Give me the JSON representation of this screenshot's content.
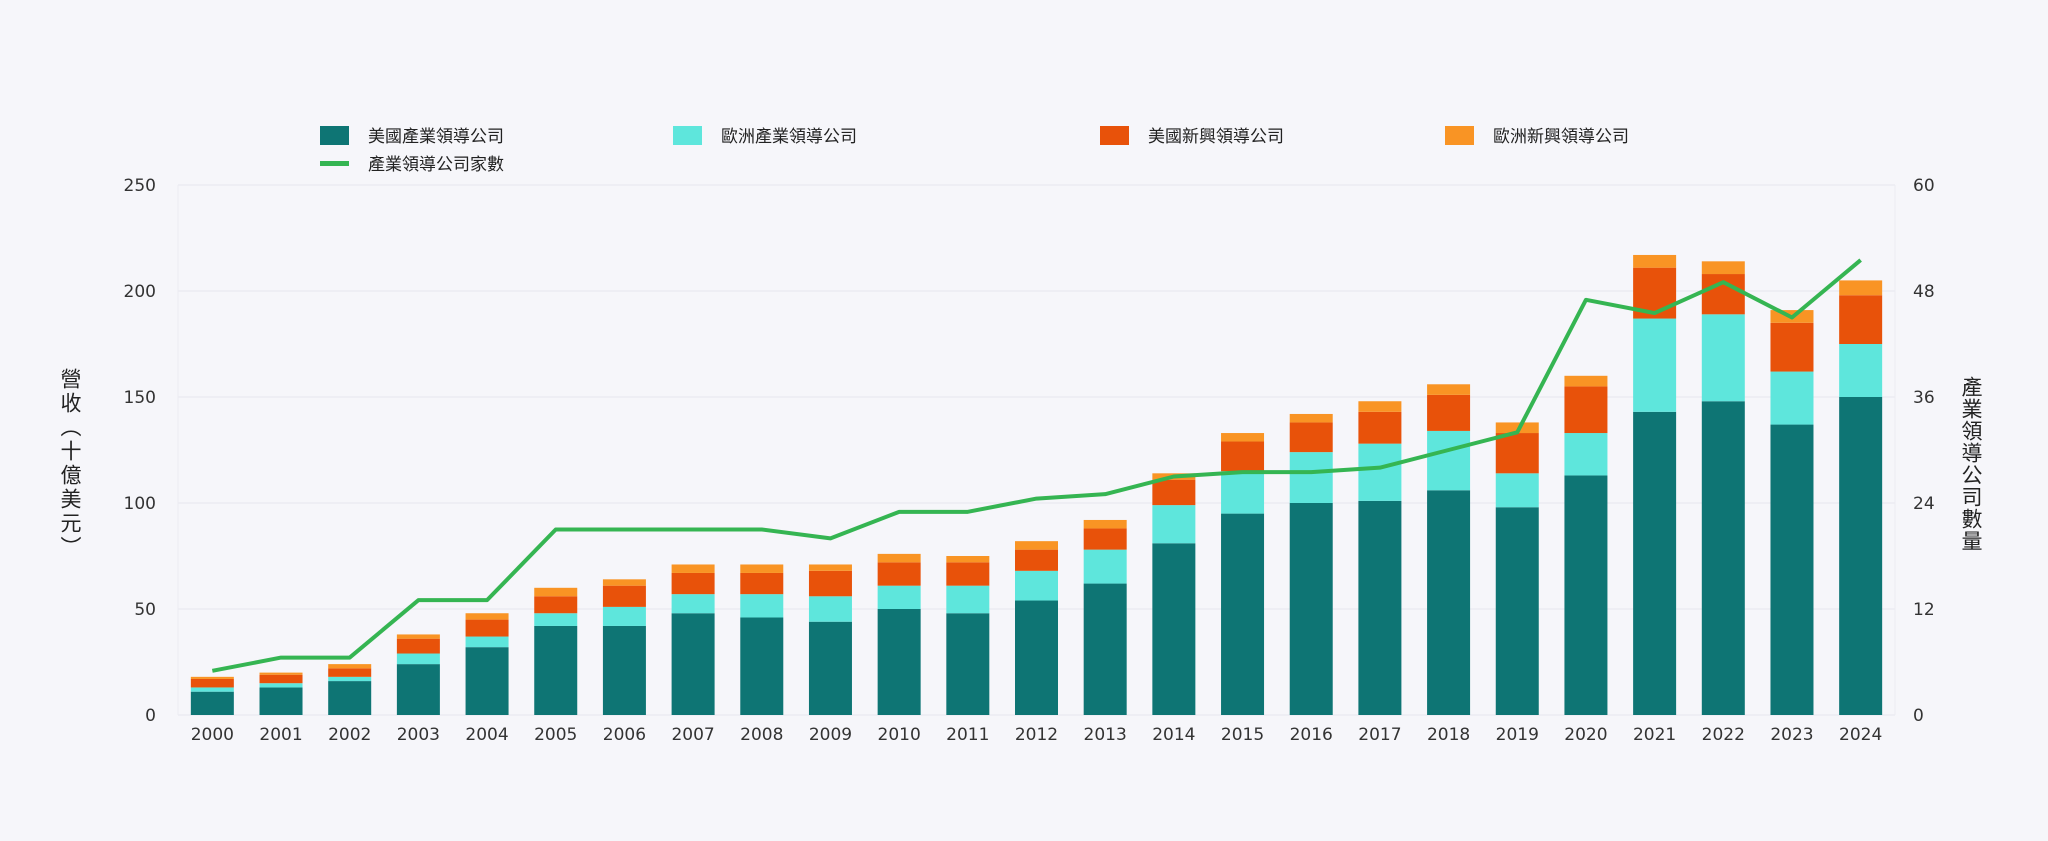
{
  "chart_data": {
    "type": "bar",
    "stacked": true,
    "title": "",
    "categories": [
      "2000",
      "2001",
      "2002",
      "2003",
      "2004",
      "2005",
      "2006",
      "2007",
      "2008",
      "2009",
      "2010",
      "2011",
      "2012",
      "2013",
      "2014",
      "2015",
      "2016",
      "2017",
      "2018",
      "2019",
      "2020",
      "2021",
      "2022",
      "2023",
      "2024"
    ],
    "series": [
      {
        "name": "美國產業領導公司",
        "axis": "left",
        "color": "#0e7574",
        "values": [
          11,
          13,
          16,
          24,
          32,
          42,
          42,
          48,
          46,
          44,
          50,
          48,
          54,
          62,
          81,
          95,
          100,
          101,
          106,
          98,
          113,
          143,
          148,
          137,
          150
        ]
      },
      {
        "name": "歐洲產業領導公司",
        "axis": "left",
        "color": "#5ee6dc",
        "values": [
          2,
          2,
          2,
          5,
          5,
          6,
          9,
          9,
          11,
          12,
          11,
          13,
          14,
          16,
          18,
          20,
          24,
          27,
          28,
          16,
          20,
          44,
          41,
          25,
          25
        ]
      },
      {
        "name": "美國新興領導公司",
        "axis": "left",
        "color": "#e8520a",
        "values": [
          4,
          4,
          4,
          7,
          8,
          8,
          10,
          10,
          10,
          12,
          11,
          11,
          10,
          10,
          12,
          14,
          14,
          15,
          17,
          19,
          22,
          24,
          19,
          23,
          23
        ]
      },
      {
        "name": "歐洲新興領導公司",
        "axis": "left",
        "color": "#f99424",
        "values": [
          1,
          1,
          2,
          2,
          3,
          4,
          3,
          4,
          4,
          3,
          4,
          3,
          4,
          4,
          3,
          4,
          4,
          5,
          5,
          5,
          5,
          6,
          6,
          6,
          7
        ]
      },
      {
        "name": "產業領導公司家數",
        "axis": "right",
        "type": "line",
        "color": "#35b552",
        "values": [
          5,
          6.5,
          6.5,
          13,
          13,
          21,
          21,
          21,
          21,
          20,
          23,
          23,
          24.5,
          25,
          27,
          27.5,
          27.5,
          28,
          30,
          32,
          47,
          45.5,
          49,
          45,
          51.5
        ]
      }
    ],
    "ylabel": "營收（十億美元）",
    "y2label": "產業領導公司數量",
    "ylim": [
      0,
      250
    ],
    "yticks": [
      0,
      50,
      100,
      150,
      200,
      250
    ],
    "y2lim": [
      0,
      60
    ],
    "y2ticks": [
      0,
      12,
      24,
      36,
      48,
      60
    ],
    "grid": true,
    "legend_position": "top"
  }
}
